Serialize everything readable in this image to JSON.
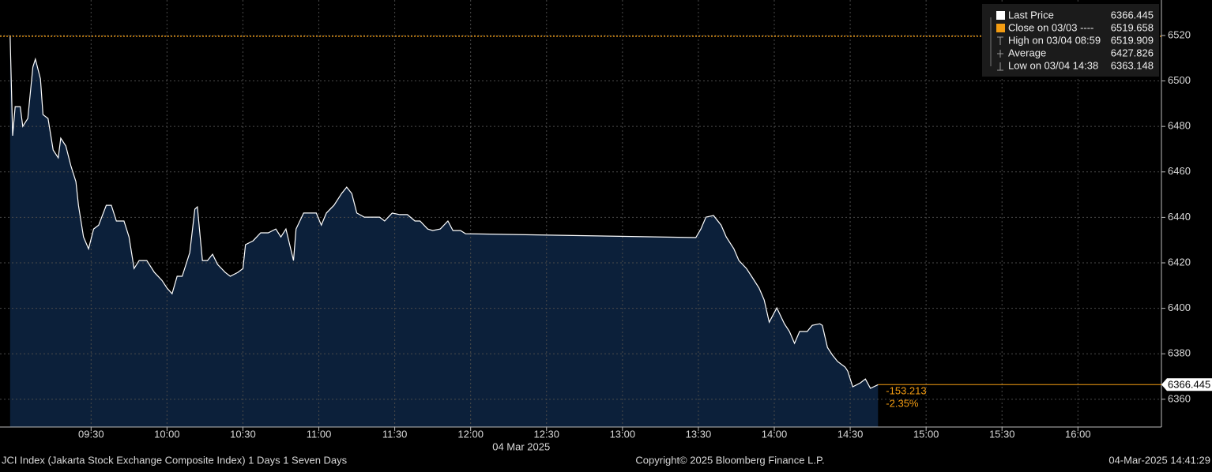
{
  "chart_data": {
    "type": "area",
    "x": [
      538,
      539,
      540,
      542,
      543,
      545,
      547,
      548,
      550,
      551,
      553,
      555,
      557,
      558,
      560,
      562,
      564,
      565,
      567,
      569,
      571,
      573,
      576,
      578,
      580,
      583,
      585,
      587,
      589,
      592,
      595,
      598,
      600,
      602,
      604,
      606,
      609,
      611,
      612,
      614,
      616,
      618,
      620,
      623,
      625,
      628,
      630,
      631,
      634,
      637,
      640,
      643,
      645,
      647,
      650,
      651,
      654,
      656,
      659,
      661,
      663,
      666,
      669,
      671,
      673,
      675,
      678,
      681,
      684,
      686,
      689,
      692,
      695,
      698,
      700,
      703,
      705,
      708,
      711,
      713,
      716,
      718,
      809,
      811,
      813,
      816,
      819,
      821,
      824,
      826,
      829,
      831,
      834,
      836,
      838,
      841,
      844,
      846,
      848,
      850,
      853,
      855,
      858,
      859,
      861,
      863,
      865,
      868,
      869,
      871,
      874,
      876,
      878,
      881
    ],
    "values": [
      6520.0,
      6475.9,
      6488.7,
      6488.7,
      6480.0,
      6483.5,
      6506.1,
      6509.6,
      6500.9,
      6485.2,
      6483.5,
      6469.6,
      6466.2,
      6474.8,
      6471.4,
      6462.7,
      6455.7,
      6445.3,
      6431.4,
      6426.2,
      6434.9,
      6436.6,
      6445.3,
      6445.3,
      6438.4,
      6438.4,
      6431.4,
      6417.5,
      6421.0,
      6421.0,
      6415.8,
      6412.3,
      6408.9,
      6406.4,
      6414.1,
      6414.1,
      6424.5,
      6443.6,
      6444.6,
      6421.0,
      6421.0,
      6423.8,
      6419.3,
      6415.8,
      6414.1,
      6415.8,
      6417.5,
      6428.0,
      6429.7,
      6433.2,
      6433.2,
      6434.9,
      6431.4,
      6434.9,
      6421.0,
      6434.9,
      6441.9,
      6441.9,
      6441.9,
      6436.6,
      6441.9,
      6445.3,
      6450.5,
      6453.3,
      6450.5,
      6441.9,
      6440.1,
      6440.1,
      6440.1,
      6438.4,
      6441.9,
      6441.2,
      6441.2,
      6438.4,
      6438.4,
      6434.9,
      6434.2,
      6434.9,
      6438.4,
      6434.2,
      6434.2,
      6432.8,
      6431.1,
      6434.9,
      6440.1,
      6440.8,
      6436.6,
      6431.4,
      6426.2,
      6421.0,
      6417.5,
      6414.1,
      6408.9,
      6403.7,
      6393.9,
      6400.2,
      6393.2,
      6389.8,
      6384.6,
      6389.8,
      6389.8,
      6392.5,
      6393.2,
      6392.5,
      6382.8,
      6379.4,
      6376.6,
      6374.1,
      6372.4,
      6365.5,
      6367.2,
      6368.9,
      6364.8,
      6366.4
    ],
    "color": "#ffffff",
    "fill": "#0c203a",
    "xlim": [
      534,
      993
    ],
    "ylim": [
      6347.8,
      6535.6
    ],
    "xticks": [
      {
        "value": 570,
        "label": "09:30"
      },
      {
        "value": 600,
        "label": "10:00"
      },
      {
        "value": 630,
        "label": "10:30"
      },
      {
        "value": 660,
        "label": "11:00"
      },
      {
        "value": 690,
        "label": "11:30"
      },
      {
        "value": 720,
        "label": "12:00"
      },
      {
        "value": 750,
        "label": "12:30"
      },
      {
        "value": 780,
        "label": "13:00"
      },
      {
        "value": 810,
        "label": "13:30"
      },
      {
        "value": 840,
        "label": "14:00"
      },
      {
        "value": 870,
        "label": "14:30"
      },
      {
        "value": 900,
        "label": "15:00"
      },
      {
        "value": 930,
        "label": "15:30"
      },
      {
        "value": 960,
        "label": "16:00"
      }
    ],
    "yticks": [
      6360,
      6380,
      6400,
      6420,
      6440,
      6460,
      6480,
      6500,
      6520
    ],
    "grid": true,
    "x_date": "04 Mar 2025",
    "legend": [
      {
        "name": "Last Price",
        "value": 6366.445,
        "color": "#ffffff"
      },
      {
        "name": "Close on 03/03 ----",
        "value": 6519.658,
        "color": "#f39c12"
      },
      {
        "name": "High on 03/04 08:59",
        "value": 6519.909,
        "color": "#9a9a9a"
      },
      {
        "name": "Average",
        "value": 6427.826,
        "color": "#9a9a9a"
      },
      {
        "name": "Low on 03/04 14:38",
        "value": 6363.148,
        "color": "#9a9a9a"
      }
    ],
    "annotations": [
      "-153.213",
      "-2.35%"
    ],
    "footer": [
      "JCI Index (Jakarta Stock Exchange Composite Index) 1 Days 1 Seven Days",
      "Copyright© 2025 Bloomberg Finance L.P.",
      "04-Mar-2025 14:41:29"
    ]
  }
}
